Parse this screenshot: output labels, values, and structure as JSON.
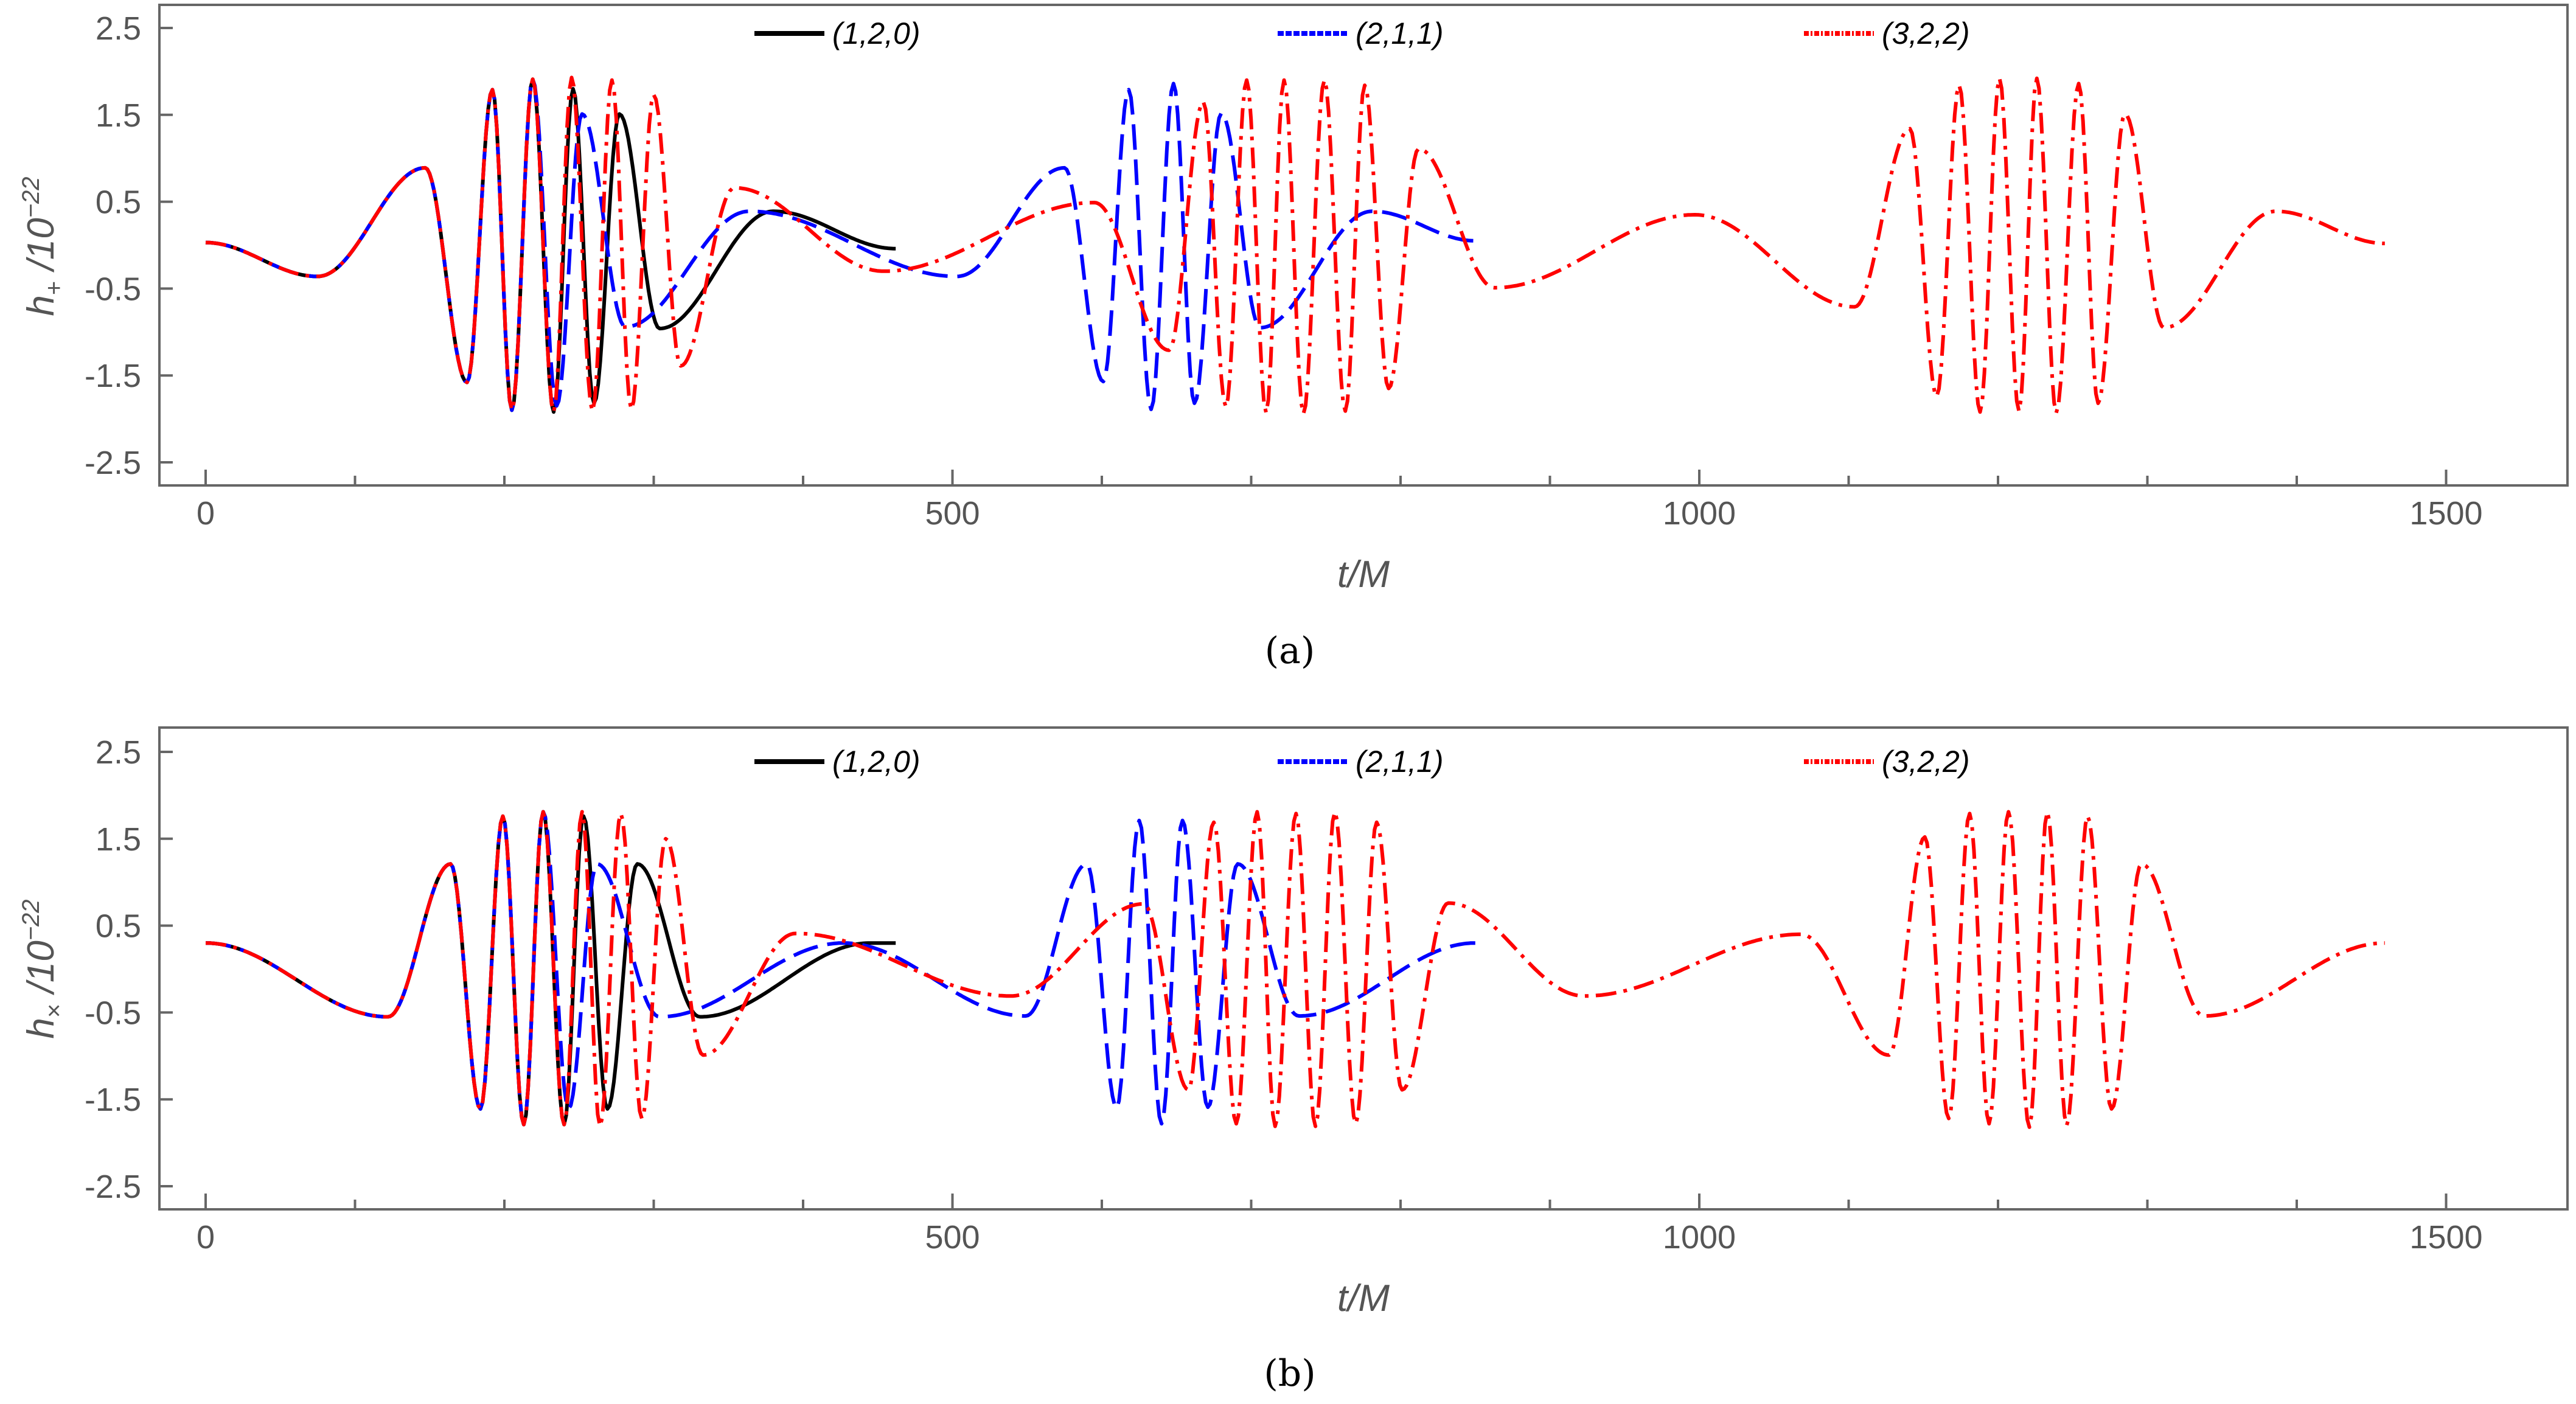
{
  "chart_data": [
    {
      "type": "line",
      "caption": "(a)",
      "xlabel": "t/M",
      "ylabel": {
        "symbol": "h",
        "sub": "+",
        "unit": " /10",
        "exp": "−22"
      },
      "xlim": [
        -30,
        1570
      ],
      "ylim": [
        -2.8,
        2.8
      ],
      "xticks": [
        "0",
        "500",
        "1000",
        "1500"
      ],
      "yticks": [
        "2.5",
        "1.5",
        "0.5",
        "-0.5",
        "-1.5",
        "-2.5"
      ],
      "minor_xtick_step": 100,
      "grid": false,
      "legend_placement": "top",
      "series": [
        {
          "name": "(1,2,0)",
          "color": "#000000",
          "style": "solid",
          "points": [
            [
              0,
              0.03
            ],
            [
              75,
              -0.36
            ],
            [
              147,
              0.89
            ],
            [
              175,
              -1.58
            ],
            [
              192,
              1.79
            ],
            [
              205,
              -1.9
            ],
            [
              219,
              1.91
            ],
            [
              233,
              -1.92
            ],
            [
              246,
              1.8
            ],
            [
              260,
              -1.82
            ],
            [
              277,
              1.51
            ],
            [
              304,
              -0.96
            ],
            [
              380,
              0.39
            ],
            [
              462,
              -0.04
            ]
          ]
        },
        {
          "name": "(2,1,1)",
          "color": "#0000ff",
          "style": "dashed",
          "points": [
            [
              0,
              0.03
            ],
            [
              75,
              -0.36
            ],
            [
              147,
              0.89
            ],
            [
              175,
              -1.58
            ],
            [
              192,
              1.79
            ],
            [
              205,
              -1.9
            ],
            [
              219,
              1.91
            ],
            [
              235,
              -1.85
            ],
            [
              252,
              1.51
            ],
            [
              281,
              -0.94
            ],
            [
              364,
              0.39
            ],
            [
              503,
              -0.36
            ],
            [
              575,
              0.89
            ],
            [
              601,
              -1.57
            ],
            [
              618,
              1.79
            ],
            [
              633,
              -1.89
            ],
            [
              648,
              1.86
            ],
            [
              662,
              -1.82
            ],
            [
              680,
              1.52
            ],
            [
              706,
              -0.95
            ],
            [
              781,
              0.39
            ],
            [
              850,
              0.05
            ]
          ]
        },
        {
          "name": "(3,2,2)",
          "color": "#ff0000",
          "style": "dash-dot",
          "points": [
            [
              0,
              0.03
            ],
            [
              75,
              -0.36
            ],
            [
              147,
              0.89
            ],
            [
              175,
              -1.58
            ],
            [
              192,
              1.79
            ],
            [
              205,
              -1.9
            ],
            [
              219,
              1.91
            ],
            [
              233,
              -1.92
            ],
            [
              245,
              1.93
            ],
            [
              259,
              -1.91
            ],
            [
              272,
              1.9
            ],
            [
              285,
              -1.89
            ],
            [
              300,
              1.73
            ],
            [
              318,
              -1.39
            ],
            [
              354,
              0.66
            ],
            [
              454,
              -0.3
            ],
            [
              595,
              0.49
            ],
            [
              645,
              -1.21
            ],
            [
              668,
              1.65
            ],
            [
              683,
              -1.86
            ],
            [
              697,
              1.9
            ],
            [
              710,
              -1.93
            ],
            [
              722,
              1.9
            ],
            [
              735,
              -1.94
            ],
            [
              749,
              1.9
            ],
            [
              763,
              -1.91
            ],
            [
              776,
              1.84
            ],
            [
              792,
              -1.65
            ],
            [
              812,
              1.11
            ],
            [
              863,
              -0.49
            ],
            [
              997,
              0.35
            ],
            [
              1104,
              -0.71
            ],
            [
              1141,
              1.34
            ],
            [
              1159,
              -1.74
            ],
            [
              1174,
              1.84
            ],
            [
              1188,
              -1.92
            ],
            [
              1201,
              1.92
            ],
            [
              1214,
              -1.91
            ],
            [
              1226,
              1.92
            ],
            [
              1239,
              -1.93
            ],
            [
              1254,
              1.86
            ],
            [
              1267,
              -1.82
            ],
            [
              1285,
              1.51
            ],
            [
              1311,
              -0.95
            ],
            [
              1386,
              0.39
            ],
            [
              1459,
              0.02
            ]
          ]
        }
      ]
    },
    {
      "type": "line",
      "caption": "(b)",
      "xlabel": "t/M",
      "ylabel": {
        "symbol": "h",
        "sub": "×",
        "unit": " /10",
        "exp": "−22"
      },
      "xlim": [
        -30,
        1570
      ],
      "ylim": [
        -2.8,
        2.8
      ],
      "xticks": [
        "0",
        "500",
        "1000",
        "1500"
      ],
      "yticks": [
        "2.5",
        "1.5",
        "0.5",
        "-0.5",
        "-1.5",
        "-2.5"
      ],
      "minor_xtick_step": 100,
      "grid": false,
      "legend_placement": "top",
      "series": [
        {
          "name": "(1,2,0)",
          "color": "#000000",
          "style": "solid",
          "points": [
            [
              0,
              0.3
            ],
            [
              122,
              -0.55
            ],
            [
              164,
              1.21
            ],
            [
              184,
              -1.61
            ],
            [
              199,
              1.76
            ],
            [
              213,
              -1.79
            ],
            [
              226,
              1.81
            ],
            [
              240,
              -1.79
            ],
            [
              253,
              1.76
            ],
            [
              269,
              -1.61
            ],
            [
              289,
              1.21
            ],
            [
              331,
              -0.55
            ],
            [
              445,
              0.3
            ],
            [
              462,
              0.3
            ]
          ]
        },
        {
          "name": "(2,1,1)",
          "color": "#0000ff",
          "style": "dashed",
          "points": [
            [
              0,
              0.3
            ],
            [
              122,
              -0.55
            ],
            [
              164,
              1.21
            ],
            [
              184,
              -1.61
            ],
            [
              199,
              1.76
            ],
            [
              213,
              -1.79
            ],
            [
              226,
              1.81
            ],
            [
              243,
              -1.61
            ],
            [
              262,
              1.21
            ],
            [
              304,
              -0.55
            ],
            [
              427,
              0.3
            ],
            [
              549,
              -0.54
            ],
            [
              590,
              1.21
            ],
            [
              610,
              -1.6
            ],
            [
              625,
              1.71
            ],
            [
              640,
              -1.78
            ],
            [
              654,
              1.71
            ],
            [
              671,
              -1.59
            ],
            [
              691,
              1.21
            ],
            [
              732,
              -0.54
            ],
            [
              850,
              0.3
            ]
          ]
        },
        {
          "name": "(3,2,2)",
          "color": "#ff0000",
          "style": "dash-dot",
          "points": [
            [
              0,
              0.3
            ],
            [
              122,
              -0.55
            ],
            [
              164,
              1.21
            ],
            [
              184,
              -1.61
            ],
            [
              199,
              1.76
            ],
            [
              213,
              -1.79
            ],
            [
              226,
              1.81
            ],
            [
              240,
              -1.79
            ],
            [
              252,
              1.81
            ],
            [
              264,
              -1.81
            ],
            [
              278,
              1.79
            ],
            [
              292,
              -1.72
            ],
            [
              308,
              1.5
            ],
            [
              333,
              -0.99
            ],
            [
              395,
              0.41
            ],
            [
              539,
              -0.31
            ],
            [
              628,
              0.75
            ],
            [
              658,
              -1.39
            ],
            [
              675,
              1.69
            ],
            [
              690,
              -1.78
            ],
            [
              704,
              1.81
            ],
            [
              716,
              -1.81
            ],
            [
              730,
              1.79
            ],
            [
              743,
              -1.81
            ],
            [
              756,
              1.81
            ],
            [
              770,
              -1.78
            ],
            [
              784,
              1.69
            ],
            [
              801,
              -1.39
            ],
            [
              832,
              0.76
            ],
            [
              923,
              -0.31
            ],
            [
              1068,
              0.4
            ],
            [
              1127,
              -0.99
            ],
            [
              1151,
              1.52
            ],
            [
              1167,
              -1.72
            ],
            [
              1181,
              1.79
            ],
            [
              1194,
              -1.78
            ],
            [
              1207,
              1.81
            ],
            [
              1221,
              -1.82
            ],
            [
              1233,
              1.81
            ],
            [
              1246,
              -1.8
            ],
            [
              1260,
              1.76
            ],
            [
              1276,
              -1.61
            ],
            [
              1296,
              1.21
            ],
            [
              1338,
              -0.54
            ],
            [
              1459,
              0.3
            ]
          ]
        }
      ]
    }
  ]
}
